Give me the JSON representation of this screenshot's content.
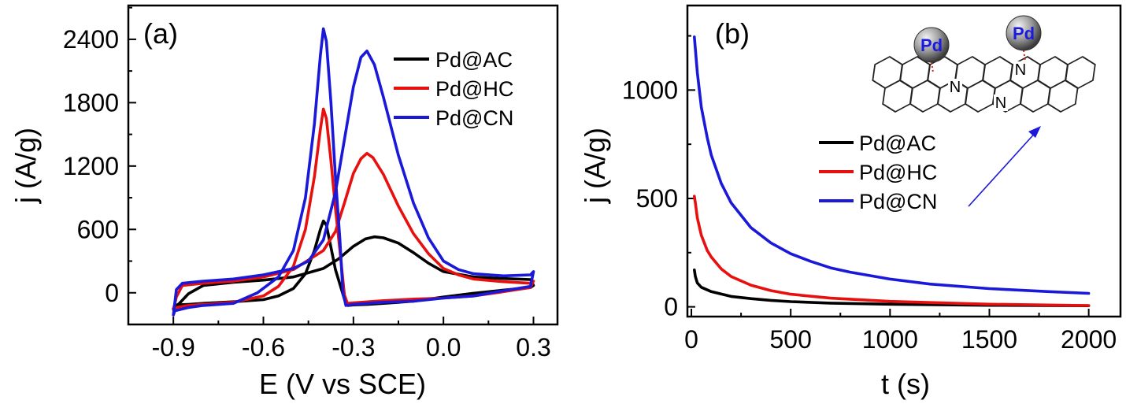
{
  "chart_data": [
    {
      "type": "line",
      "panel_label": "(a)",
      "xlabel": "E (V vs SCE)",
      "ylabel": "j (A/g)",
      "xlim": [
        -1.05,
        0.38
      ],
      "ylim": [
        -300,
        2720
      ],
      "xticks": [
        -0.9,
        -0.6,
        -0.3,
        0.0,
        0.3
      ],
      "xtick_labels": [
        "-0.9",
        "-0.6",
        "-0.3",
        "0.0",
        "0.3"
      ],
      "yticks": [
        0,
        600,
        1200,
        1800,
        2400
      ],
      "ytick_labels": [
        "0",
        "600",
        "1200",
        "1800",
        "2400"
      ],
      "legend_position": "top-right",
      "series": [
        {
          "name": "Pd@AC",
          "color": "#000000",
          "points": [
            [
              -0.9,
              -150
            ],
            [
              -0.89,
              -115
            ],
            [
              -0.85,
              -110
            ],
            [
              -0.8,
              -100
            ],
            [
              -0.7,
              -85
            ],
            [
              -0.6,
              -65
            ],
            [
              -0.55,
              -30
            ],
            [
              -0.5,
              40
            ],
            [
              -0.46,
              180
            ],
            [
              -0.43,
              400
            ],
            [
              -0.41,
              600
            ],
            [
              -0.4,
              680
            ],
            [
              -0.39,
              640
            ],
            [
              -0.375,
              430
            ],
            [
              -0.36,
              220
            ],
            [
              -0.345,
              80
            ],
            [
              -0.33,
              -60
            ],
            [
              -0.32,
              -120
            ],
            [
              -0.3,
              -115
            ],
            [
              -0.25,
              -110
            ],
            [
              -0.2,
              -100
            ],
            [
              -0.1,
              -80
            ],
            [
              0.0,
              -40
            ],
            [
              0.1,
              -5
            ],
            [
              0.2,
              25
            ],
            [
              0.29,
              50
            ],
            [
              0.3,
              70
            ],
            [
              0.29,
              125
            ],
            [
              0.2,
              135
            ],
            [
              0.1,
              150
            ],
            [
              0.0,
              200
            ],
            [
              -0.05,
              280
            ],
            [
              -0.1,
              380
            ],
            [
              -0.15,
              470
            ],
            [
              -0.2,
              520
            ],
            [
              -0.23,
              530
            ],
            [
              -0.26,
              510
            ],
            [
              -0.3,
              440
            ],
            [
              -0.35,
              320
            ],
            [
              -0.4,
              230
            ],
            [
              -0.5,
              150
            ],
            [
              -0.6,
              120
            ],
            [
              -0.7,
              100
            ],
            [
              -0.8,
              70
            ],
            [
              -0.85,
              -10
            ],
            [
              -0.88,
              -100
            ],
            [
              -0.9,
              -150
            ]
          ]
        },
        {
          "name": "Pd@HC",
          "color": "#e8100f",
          "points": [
            [
              -0.9,
              -160
            ],
            [
              -0.89,
              -140
            ],
            [
              -0.85,
              -120
            ],
            [
              -0.8,
              -110
            ],
            [
              -0.7,
              -90
            ],
            [
              -0.6,
              -30
            ],
            [
              -0.55,
              60
            ],
            [
              -0.5,
              250
            ],
            [
              -0.46,
              600
            ],
            [
              -0.43,
              1100
            ],
            [
              -0.41,
              1550
            ],
            [
              -0.4,
              1740
            ],
            [
              -0.39,
              1650
            ],
            [
              -0.375,
              1250
            ],
            [
              -0.36,
              800
            ],
            [
              -0.345,
              400
            ],
            [
              -0.33,
              -20
            ],
            [
              -0.32,
              -100
            ],
            [
              -0.3,
              -95
            ],
            [
              -0.25,
              -85
            ],
            [
              -0.2,
              -75
            ],
            [
              -0.1,
              -60
            ],
            [
              0.0,
              -50
            ],
            [
              0.1,
              -30
            ],
            [
              0.2,
              10
            ],
            [
              0.29,
              50
            ],
            [
              0.3,
              110
            ],
            [
              0.29,
              90
            ],
            [
              0.2,
              105
            ],
            [
              0.1,
              130
            ],
            [
              0.05,
              170
            ],
            [
              0.0,
              230
            ],
            [
              -0.05,
              370
            ],
            [
              -0.1,
              560
            ],
            [
              -0.15,
              820
            ],
            [
              -0.2,
              1120
            ],
            [
              -0.235,
              1280
            ],
            [
              -0.255,
              1320
            ],
            [
              -0.275,
              1270
            ],
            [
              -0.3,
              1130
            ],
            [
              -0.33,
              850
            ],
            [
              -0.36,
              580
            ],
            [
              -0.4,
              400
            ],
            [
              -0.5,
              220
            ],
            [
              -0.6,
              150
            ],
            [
              -0.7,
              110
            ],
            [
              -0.8,
              90
            ],
            [
              -0.87,
              70
            ],
            [
              -0.89,
              -40
            ],
            [
              -0.9,
              -160
            ]
          ]
        },
        {
          "name": "Pd@CN",
          "color": "#1a18d9",
          "points": [
            [
              -0.9,
              -210
            ],
            [
              -0.895,
              -170
            ],
            [
              -0.85,
              -140
            ],
            [
              -0.8,
              -120
            ],
            [
              -0.7,
              -100
            ],
            [
              -0.62,
              0
            ],
            [
              -0.55,
              150
            ],
            [
              -0.5,
              400
            ],
            [
              -0.46,
              900
            ],
            [
              -0.43,
              1600
            ],
            [
              -0.41,
              2250
            ],
            [
              -0.4,
              2500
            ],
            [
              -0.39,
              2380
            ],
            [
              -0.375,
              1800
            ],
            [
              -0.36,
              1100
            ],
            [
              -0.345,
              500
            ],
            [
              -0.335,
              0
            ],
            [
              -0.325,
              -120
            ],
            [
              -0.3,
              -110
            ],
            [
              -0.25,
              -100
            ],
            [
              -0.2,
              -90
            ],
            [
              -0.1,
              -80
            ],
            [
              0.0,
              -50
            ],
            [
              0.1,
              -30
            ],
            [
              0.2,
              20
            ],
            [
              0.29,
              60
            ],
            [
              0.3,
              200
            ],
            [
              0.29,
              170
            ],
            [
              0.2,
              160
            ],
            [
              0.1,
              180
            ],
            [
              0.05,
              220
            ],
            [
              0.0,
              300
            ],
            [
              -0.05,
              520
            ],
            [
              -0.1,
              850
            ],
            [
              -0.15,
              1300
            ],
            [
              -0.2,
              1850
            ],
            [
              -0.23,
              2160
            ],
            [
              -0.255,
              2290
            ],
            [
              -0.275,
              2230
            ],
            [
              -0.3,
              1950
            ],
            [
              -0.33,
              1450
            ],
            [
              -0.36,
              950
            ],
            [
              -0.4,
              500
            ],
            [
              -0.45,
              300
            ],
            [
              -0.5,
              230
            ],
            [
              -0.6,
              170
            ],
            [
              -0.7,
              130
            ],
            [
              -0.8,
              110
            ],
            [
              -0.87,
              90
            ],
            [
              -0.89,
              30
            ],
            [
              -0.9,
              -210
            ]
          ]
        }
      ]
    },
    {
      "type": "line",
      "panel_label": "(b)",
      "xlabel": "t (s)",
      "ylabel": "j (A/g)",
      "xlim": [
        -20,
        2160
      ],
      "ylim": [
        -45,
        1390
      ],
      "xticks": [
        0,
        500,
        1000,
        1500,
        2000
      ],
      "xtick_labels": [
        "0",
        "500",
        "1000",
        "1500",
        "2000"
      ],
      "yticks": [
        0,
        500,
        1000
      ],
      "ytick_labels": [
        "0",
        "500",
        "1000"
      ],
      "legend_position": "center-right",
      "inset": {
        "atoms": [
          "Pd",
          "Pd"
        ],
        "nitrogen_labels": [
          "N",
          "N",
          "N"
        ]
      },
      "series": [
        {
          "name": "Pd@AC",
          "color": "#000000",
          "points": [
            [
              15,
              170
            ],
            [
              20,
              140
            ],
            [
              30,
              110
            ],
            [
              50,
              90
            ],
            [
              100,
              70
            ],
            [
              200,
              48
            ],
            [
              300,
              38
            ],
            [
              400,
              30
            ],
            [
              500,
              24
            ],
            [
              700,
              17
            ],
            [
              1000,
              12
            ],
            [
              1500,
              7
            ],
            [
              2000,
              5
            ]
          ]
        },
        {
          "name": "Pd@HC",
          "color": "#e8100f",
          "points": [
            [
              15,
              510
            ],
            [
              20,
              480
            ],
            [
              30,
              410
            ],
            [
              50,
              330
            ],
            [
              80,
              260
            ],
            [
              100,
              230
            ],
            [
              150,
              175
            ],
            [
              200,
              140
            ],
            [
              300,
              100
            ],
            [
              400,
              75
            ],
            [
              500,
              58
            ],
            [
              700,
              40
            ],
            [
              1000,
              25
            ],
            [
              1500,
              12
            ],
            [
              2000,
              6
            ]
          ]
        },
        {
          "name": "Pd@CN",
          "color": "#1a18d9",
          "points": [
            [
              15,
              1245
            ],
            [
              20,
              1190
            ],
            [
              30,
              1080
            ],
            [
              50,
              920
            ],
            [
              80,
              780
            ],
            [
              100,
              700
            ],
            [
              150,
              570
            ],
            [
              200,
              480
            ],
            [
              300,
              365
            ],
            [
              400,
              295
            ],
            [
              500,
              245
            ],
            [
              600,
              210
            ],
            [
              700,
              180
            ],
            [
              800,
              160
            ],
            [
              1000,
              128
            ],
            [
              1200,
              105
            ],
            [
              1500,
              84
            ],
            [
              1800,
              70
            ],
            [
              2000,
              62
            ]
          ]
        }
      ]
    }
  ]
}
